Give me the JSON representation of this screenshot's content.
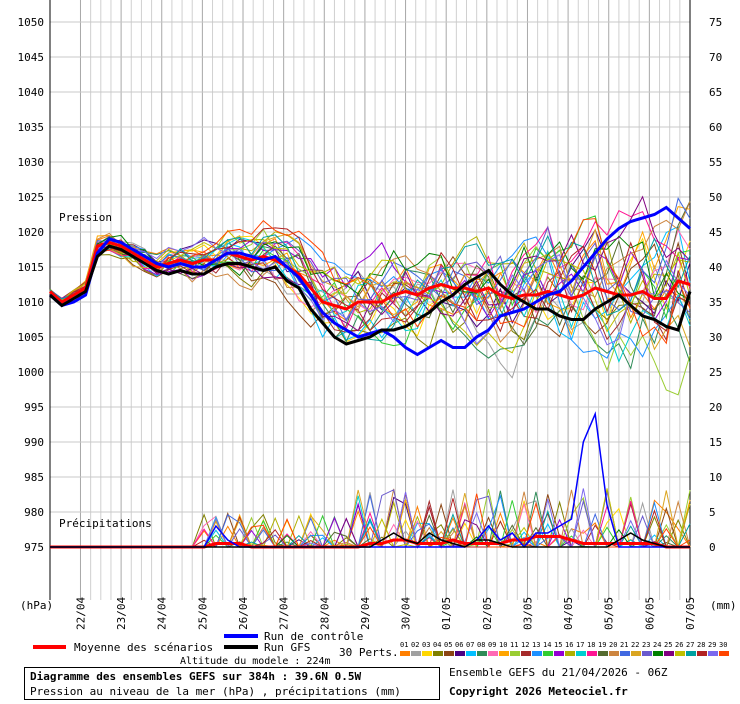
{
  "chart_data": {
    "type": "line",
    "x_dates": [
      "22/04",
      "23/04",
      "24/04",
      "25/04",
      "26/04",
      "27/04",
      "28/04",
      "29/04",
      "30/04",
      "01/05",
      "02/05",
      "03/05",
      "04/05",
      "05/05",
      "06/05",
      "07/05"
    ],
    "pressure_axis": {
      "label": "(hPa)",
      "min": 975,
      "max": 1050,
      "step": 5,
      "ticks": [
        "1050",
        "1045",
        "1040",
        "1035",
        "1030",
        "1025",
        "1020",
        "1015",
        "1010",
        "1005",
        "1000",
        "995",
        "990",
        "985",
        "980",
        "975"
      ]
    },
    "precip_axis": {
      "label": "(mm)",
      "min": 0,
      "max": 75,
      "step": 5,
      "ticks": [
        "75",
        "70",
        "65",
        "60",
        "55",
        "50",
        "45",
        "40",
        "35",
        "30",
        "25",
        "20",
        "15",
        "10",
        "5",
        "0"
      ]
    },
    "labels": {
      "pression": "Pression",
      "precipitations": "Précipitations"
    },
    "series": [
      {
        "name": "Moyenne des scénarios",
        "color": "#ff0000",
        "pressure": [
          1011.5,
          1010,
          1011,
          1012,
          1018,
          1018.5,
          1018,
          1017,
          1016,
          1015,
          1015.5,
          1016,
          1015.5,
          1016,
          1016,
          1017,
          1016.5,
          1016,
          1016.5,
          1016,
          1015,
          1014,
          1012,
          1010,
          1009.5,
          1009,
          1010,
          1010,
          1010,
          1011,
          1011.5,
          1011,
          1012,
          1012.5,
          1012,
          1012,
          1011.5,
          1012,
          1011,
          1010.5,
          1011,
          1011,
          1011.5,
          1011,
          1010.5,
          1011,
          1012,
          1011.5,
          1011,
          1011,
          1011.5,
          1010.5,
          1010.5,
          1013,
          1012.5
        ],
        "precip": [
          0,
          0,
          0,
          0,
          0,
          0,
          0,
          0,
          0,
          0,
          0,
          0,
          0,
          0,
          0.5,
          0.5,
          0.5,
          0,
          0,
          0,
          0,
          0,
          0,
          0,
          0,
          0,
          0,
          0.5,
          0.5,
          1,
          1,
          0.5,
          0.5,
          0.5,
          1,
          0.5,
          0.5,
          0.5,
          0.5,
          1,
          1,
          1.5,
          1.5,
          1.5,
          1,
          0.5,
          0.5,
          0.5,
          0.5,
          0.5,
          0.5,
          0.5,
          0,
          0,
          0
        ]
      },
      {
        "name": "Run de contrôle",
        "color": "#0000ff",
        "pressure": [
          1011,
          1009.5,
          1010,
          1011,
          1017,
          1019,
          1018.5,
          1017.5,
          1016.5,
          1015.5,
          1015,
          1015.5,
          1015,
          1015,
          1016,
          1017,
          1017,
          1016.5,
          1016,
          1016.5,
          1015,
          1013.5,
          1011,
          1008.5,
          1007,
          1006,
          1005,
          1005.5,
          1006,
          1005,
          1003.5,
          1002.5,
          1003.5,
          1004.5,
          1003.5,
          1003.5,
          1005,
          1006,
          1008,
          1008.5,
          1009,
          1010,
          1011,
          1011.5,
          1013,
          1015,
          1017,
          1019,
          1020.5,
          1021.5,
          1022,
          1022.5,
          1023.5,
          1022,
          1020.5
        ],
        "precip": [
          0,
          0,
          0,
          0,
          0,
          0,
          0,
          0,
          0,
          0,
          0,
          0,
          0,
          0,
          3,
          1,
          0,
          0,
          0,
          0,
          0,
          0,
          0,
          0,
          0,
          0,
          0,
          0,
          0,
          0,
          0,
          0,
          0,
          0,
          0,
          0,
          1,
          3,
          1,
          2,
          0,
          2,
          2,
          3,
          4,
          15,
          19,
          6,
          0,
          0,
          0,
          0,
          0,
          0,
          0
        ]
      },
      {
        "name": "Run GFS",
        "color": "#000000",
        "pressure": [
          1011,
          1009.5,
          1010.5,
          1011.5,
          1016.5,
          1018,
          1017.5,
          1016.5,
          1015.5,
          1014.5,
          1014,
          1014.5,
          1014,
          1014,
          1015,
          1015.5,
          1015.5,
          1015,
          1014.5,
          1015,
          1013,
          1012,
          1009,
          1007,
          1005,
          1004,
          1004.5,
          1005,
          1006,
          1006,
          1006.5,
          1007.5,
          1008.5,
          1010,
          1011,
          1012.5,
          1013.5,
          1014.5,
          1012.5,
          1011,
          1010,
          1009,
          1009,
          1008,
          1007.5,
          1007.5,
          1009,
          1010,
          1011,
          1009.5,
          1008,
          1007.5,
          1006.5,
          1006,
          1011.5
        ],
        "precip": [
          0,
          0,
          0,
          0,
          0,
          0,
          0,
          0,
          0,
          0,
          0,
          0,
          0,
          0,
          0,
          0,
          0,
          0,
          0,
          0,
          0,
          0,
          0,
          0,
          0,
          0,
          0,
          0,
          1,
          2,
          1,
          0.5,
          2,
          1,
          0.5,
          0,
          1,
          1,
          0.5,
          0,
          0,
          0,
          0,
          0,
          0,
          0,
          0,
          0,
          1,
          2,
          1,
          0.5,
          0,
          0,
          0
        ]
      }
    ],
    "legend": {
      "mean": "Moyenne des scénarios",
      "control": "Run de contrôle",
      "gfs": "Run GFS",
      "perts": "30 Perts.",
      "altitude": "Altitude du modele : 224m"
    },
    "perturbation_ids": [
      "01",
      "02",
      "03",
      "04",
      "05",
      "06",
      "07",
      "08",
      "09",
      "10",
      "11",
      "12",
      "13",
      "14",
      "15",
      "16",
      "17",
      "18",
      "19",
      "20",
      "21",
      "22",
      "23",
      "24",
      "25",
      "26",
      "27",
      "28",
      "29",
      "30"
    ],
    "perturbation_colors": [
      "#ff7f00",
      "#a0a0a0",
      "#ffd700",
      "#808000",
      "#8b4513",
      "#4b0082",
      "#00bfff",
      "#2e8b57",
      "#ff69b4",
      "#ffa500",
      "#9acd32",
      "#a52a2a",
      "#1e90ff",
      "#32cd32",
      "#9400d3",
      "#b0b000",
      "#00ced1",
      "#ff1493",
      "#556b2f",
      "#cd853f",
      "#4169e1",
      "#daa520",
      "#6a5acd",
      "#008000",
      "#800080",
      "#c0c000",
      "#00a0a0",
      "#b22222",
      "#7b68ee",
      "#ff4500"
    ]
  },
  "footer": {
    "title": "Diagramme des ensembles GEFS sur 384h : 39.6N 0.5W",
    "subtitle": "Pression au niveau de la mer (hPa) , précipitations (mm)",
    "run_info": "Ensemble GEFS du 21/04/2026 - 06Z",
    "copyright": "Copyright 2026 Meteociel.fr"
  }
}
